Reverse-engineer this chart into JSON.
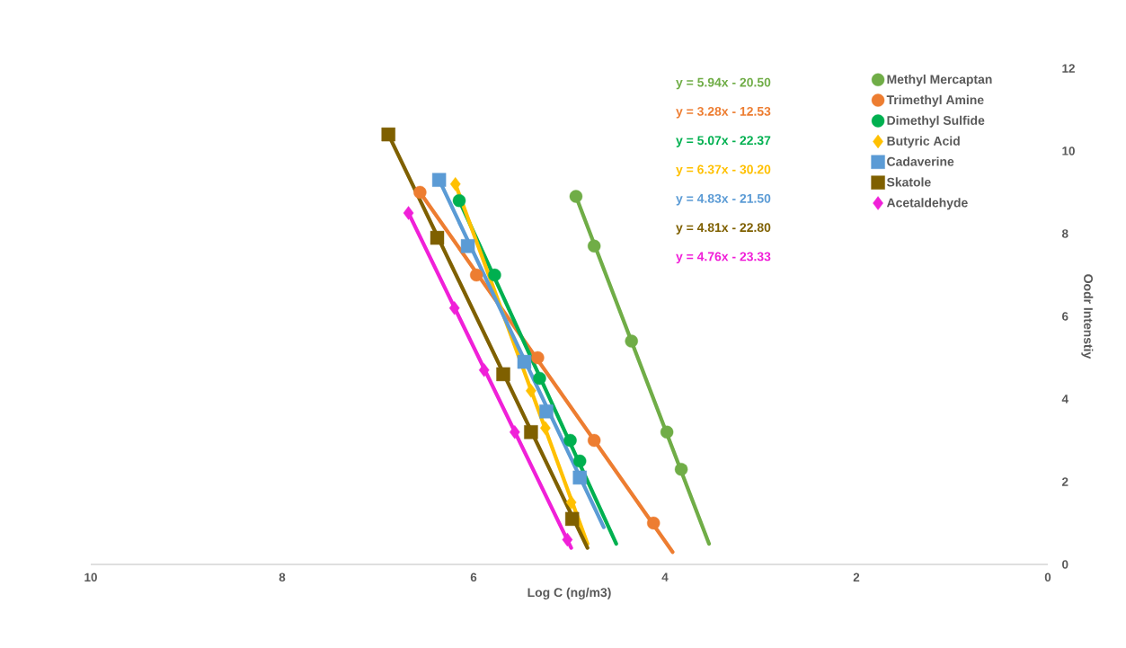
{
  "chart_data": {
    "type": "scatter",
    "xlabel": "Log C (ng/m3)",
    "ylabel": "Oodr Intenstiy",
    "xlim": [
      10,
      0
    ],
    "ylim": [
      0,
      12
    ],
    "xticks": [
      10,
      8,
      6,
      4,
      2,
      0
    ],
    "yticks": [
      0,
      2,
      4,
      6,
      8,
      10,
      12
    ],
    "grid": false,
    "legend": "top right",
    "annotations": [
      "y = 5.94x - 20.50",
      "y = 3.28x - 12.53",
      "y = 5.07x - 22.37",
      "y = 6.37x - 30.20",
      "y = 4.83x - 21.50",
      "y = 4.81x - 22.80",
      "y = 4.76x - 23.33"
    ],
    "series": [
      {
        "type": "scatter",
        "name": "Methyl Mercaptan",
        "color": "#70ad47",
        "marker": "circle",
        "x": [
          4.93,
          4.74,
          4.35,
          3.98,
          3.83
        ],
        "values": [
          8.9,
          7.7,
          5.4,
          3.2,
          2.3
        ]
      },
      {
        "type": "scatter",
        "name": "Trimethyl Amine",
        "color": "#ed7d31",
        "marker": "circle",
        "x": [
          6.56,
          5.97,
          5.33,
          4.74,
          4.12
        ],
        "values": [
          9.0,
          7.0,
          5.0,
          3.0,
          1.0
        ]
      },
      {
        "type": "scatter",
        "name": "Dimethyl Sulfide",
        "color": "#00b050",
        "marker": "circle",
        "x": [
          6.15,
          5.78,
          5.31,
          4.99,
          4.89
        ],
        "values": [
          8.8,
          7.0,
          4.5,
          3.0,
          2.5
        ]
      },
      {
        "type": "scatter",
        "name": "Butyric Acid",
        "color": "#ffc000",
        "marker": "diamond",
        "x": [
          6.19,
          5.4,
          5.25,
          4.98
        ],
        "values": [
          9.2,
          4.2,
          3.3,
          1.5
        ]
      },
      {
        "type": "scatter",
        "name": "Cadaverine",
        "color": "#5b9bd5",
        "marker": "square",
        "x": [
          6.36,
          6.06,
          5.47,
          5.24,
          4.89
        ],
        "values": [
          9.3,
          7.7,
          4.9,
          3.7,
          2.1
        ]
      },
      {
        "type": "scatter",
        "name": "Skatole",
        "color": "#7f6000",
        "marker": "square",
        "x": [
          6.89,
          6.38,
          5.69,
          5.4,
          4.97
        ],
        "values": [
          10.4,
          7.9,
          4.6,
          3.2,
          1.1
        ]
      },
      {
        "type": "scatter",
        "name": "Acetaldehyde",
        "color": "#f020d8",
        "marker": "diamond",
        "x": [
          6.68,
          6.2,
          5.89,
          5.57,
          5.02
        ],
        "values": [
          8.5,
          6.2,
          4.7,
          3.2,
          0.6
        ]
      },
      {
        "type": "line",
        "color": "#70ad47",
        "x": [
          4.93,
          3.54
        ],
        "values": [
          8.9,
          0.5
        ]
      },
      {
        "type": "line",
        "color": "#ed7d31",
        "x": [
          6.56,
          3.92
        ],
        "values": [
          9.0,
          0.3
        ]
      },
      {
        "type": "line",
        "color": "#00b050",
        "x": [
          6.15,
          4.51
        ],
        "values": [
          8.8,
          0.5
        ]
      },
      {
        "type": "line",
        "color": "#ffc000",
        "x": [
          6.19,
          4.81
        ],
        "values": [
          9.2,
          0.5
        ]
      },
      {
        "type": "line",
        "color": "#5b9bd5",
        "x": [
          6.36,
          4.64
        ],
        "values": [
          9.3,
          0.9
        ]
      },
      {
        "type": "line",
        "color": "#7f6000",
        "x": [
          6.89,
          4.81
        ],
        "values": [
          10.4,
          0.4
        ]
      },
      {
        "type": "line",
        "color": "#f020d8",
        "x": [
          6.68,
          4.98
        ],
        "values": [
          8.5,
          0.4
        ]
      }
    ]
  }
}
